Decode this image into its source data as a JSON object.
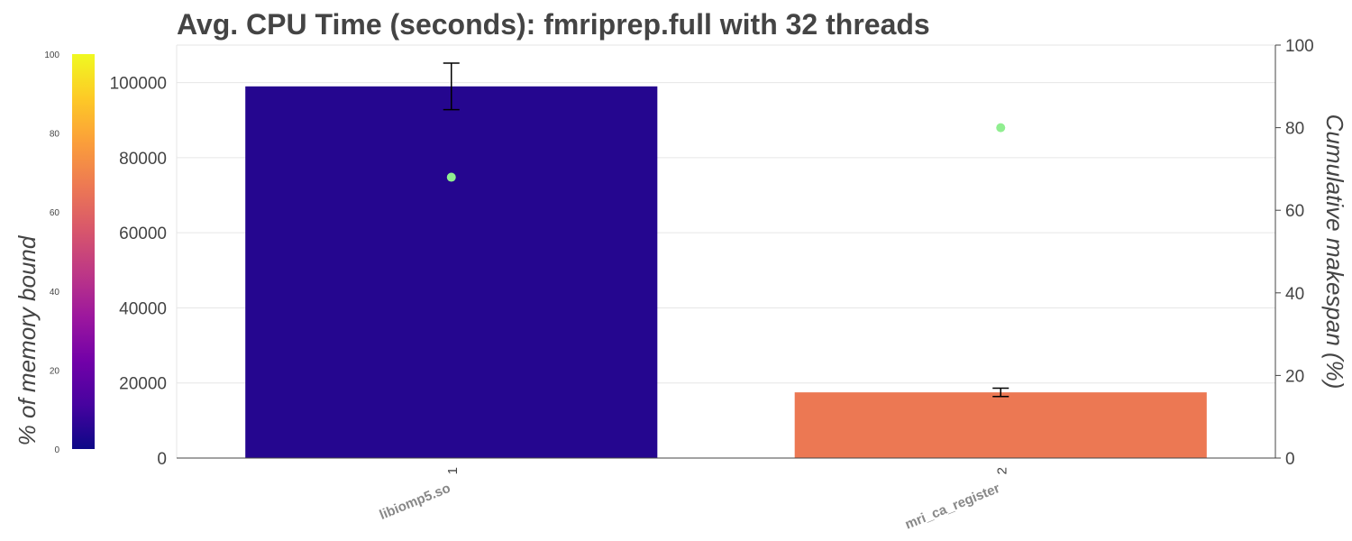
{
  "chart_data": {
    "type": "bar",
    "title": "Avg. CPU Time (seconds): fmriprep.full with 32 threads",
    "categories": [
      "1",
      "2"
    ],
    "category_labels": [
      "libiomp5.so",
      "mri_ca_register"
    ],
    "values": [
      99000,
      17500
    ],
    "error_bars": [
      {
        "low": 92800,
        "high": 105200
      },
      {
        "low": 16400,
        "high": 18600
      }
    ],
    "bar_colors": [
      "#25068f",
      "#ec7853"
    ],
    "y_ticks": [
      "0",
      "20000",
      "40000",
      "60000",
      "80000",
      "100000"
    ],
    "ylim": [
      0,
      110000
    ],
    "y2label": "Cumulative makespan (%)",
    "y2lim": [
      0,
      100
    ],
    "y2_ticks": [
      "0",
      "20",
      "40",
      "60",
      "80",
      "100"
    ],
    "makespan_points": [
      68,
      80
    ],
    "point_color": "#90ee90",
    "colorbar": {
      "label": "% of memory bound",
      "range": [
        0,
        100
      ],
      "ticks": [
        "0",
        "20",
        "40",
        "60",
        "80",
        "100"
      ],
      "colors": [
        "#0d0887",
        "#46039f",
        "#7201a8",
        "#9c179e",
        "#bd3786",
        "#d8576b",
        "#ed7953",
        "#fb9f3a",
        "#fdca26",
        "#f0f921"
      ]
    },
    "grid": true
  }
}
